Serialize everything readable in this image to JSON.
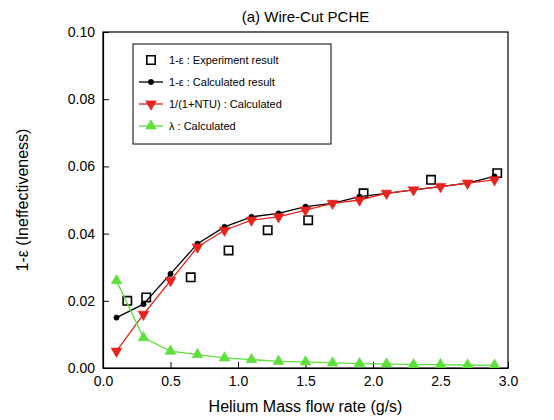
{
  "chart_data": {
    "type": "scatter",
    "title": "(a) Wire-Cut PCHE",
    "x_label": "Helium Mass flow rate (g/s)",
    "y_label": "1-ε (Ineffectiveness)",
    "xlim": [
      0,
      3.0
    ],
    "ylim": [
      0,
      0.1
    ],
    "xticks": [
      {
        "value": 0,
        "label": "0.0"
      },
      0.5,
      {
        "value": 1.0,
        "label": "1.0"
      },
      1.5,
      {
        "value": 2.0,
        "label": "2.0"
      },
      2.5,
      {
        "value": 3.0,
        "label": "3.0"
      }
    ],
    "yticks": [
      {
        "value": 0,
        "label": "0.00"
      },
      0.02,
      0.04,
      0.06,
      0.08,
      {
        "value": 0.1,
        "label": "0.10"
      }
    ],
    "legend": "top-left",
    "series": [
      {
        "name": "1-ε : Experiment result",
        "type": "scatter",
        "color": "#000000",
        "marker": "square",
        "x": [
          0.18,
          0.32,
          0.65,
          0.93,
          1.22,
          1.52,
          1.93,
          2.43,
          2.92
        ],
        "values": [
          0.02,
          0.021,
          0.027,
          0.035,
          0.041,
          0.044,
          0.052,
          0.056,
          0.058
        ]
      },
      {
        "name": "1-ε : Calculated result",
        "type": "line",
        "color": "#000000",
        "marker": "circle",
        "x": [
          0.1,
          0.3,
          0.5,
          0.7,
          0.9,
          1.1,
          1.3,
          1.5,
          1.7,
          1.9,
          2.1,
          2.3,
          2.5,
          2.7,
          2.9
        ],
        "values": [
          0.015,
          0.019,
          0.028,
          0.037,
          0.042,
          0.045,
          0.046,
          0.048,
          0.049,
          0.051,
          0.052,
          0.053,
          0.054,
          0.055,
          0.057
        ]
      },
      {
        "name": "1/(1+NTU) : Calculated",
        "type": "line",
        "color": "#e8231e",
        "marker": "triangle-down",
        "x": [
          0.1,
          0.3,
          0.5,
          0.7,
          0.9,
          1.1,
          1.3,
          1.5,
          1.7,
          1.9,
          2.1,
          2.3,
          2.5,
          2.7,
          2.9
        ],
        "values": [
          0.005,
          0.016,
          0.026,
          0.036,
          0.041,
          0.044,
          0.045,
          0.047,
          0.049,
          0.05,
          0.052,
          0.053,
          0.054,
          0.055,
          0.056
        ]
      },
      {
        "name": "λ : Calculated",
        "type": "line",
        "color": "#5ee03c",
        "marker": "triangle-up",
        "x": [
          0.1,
          0.3,
          0.5,
          0.7,
          0.9,
          1.1,
          1.3,
          1.5,
          1.7,
          1.9,
          2.1,
          2.3,
          2.5,
          2.7,
          2.9
        ],
        "values": [
          0.026,
          0.009,
          0.005,
          0.004,
          0.003,
          0.0025,
          0.002,
          0.0018,
          0.0015,
          0.0013,
          0.0012,
          0.001,
          0.001,
          0.0009,
          0.0008
        ]
      }
    ]
  }
}
